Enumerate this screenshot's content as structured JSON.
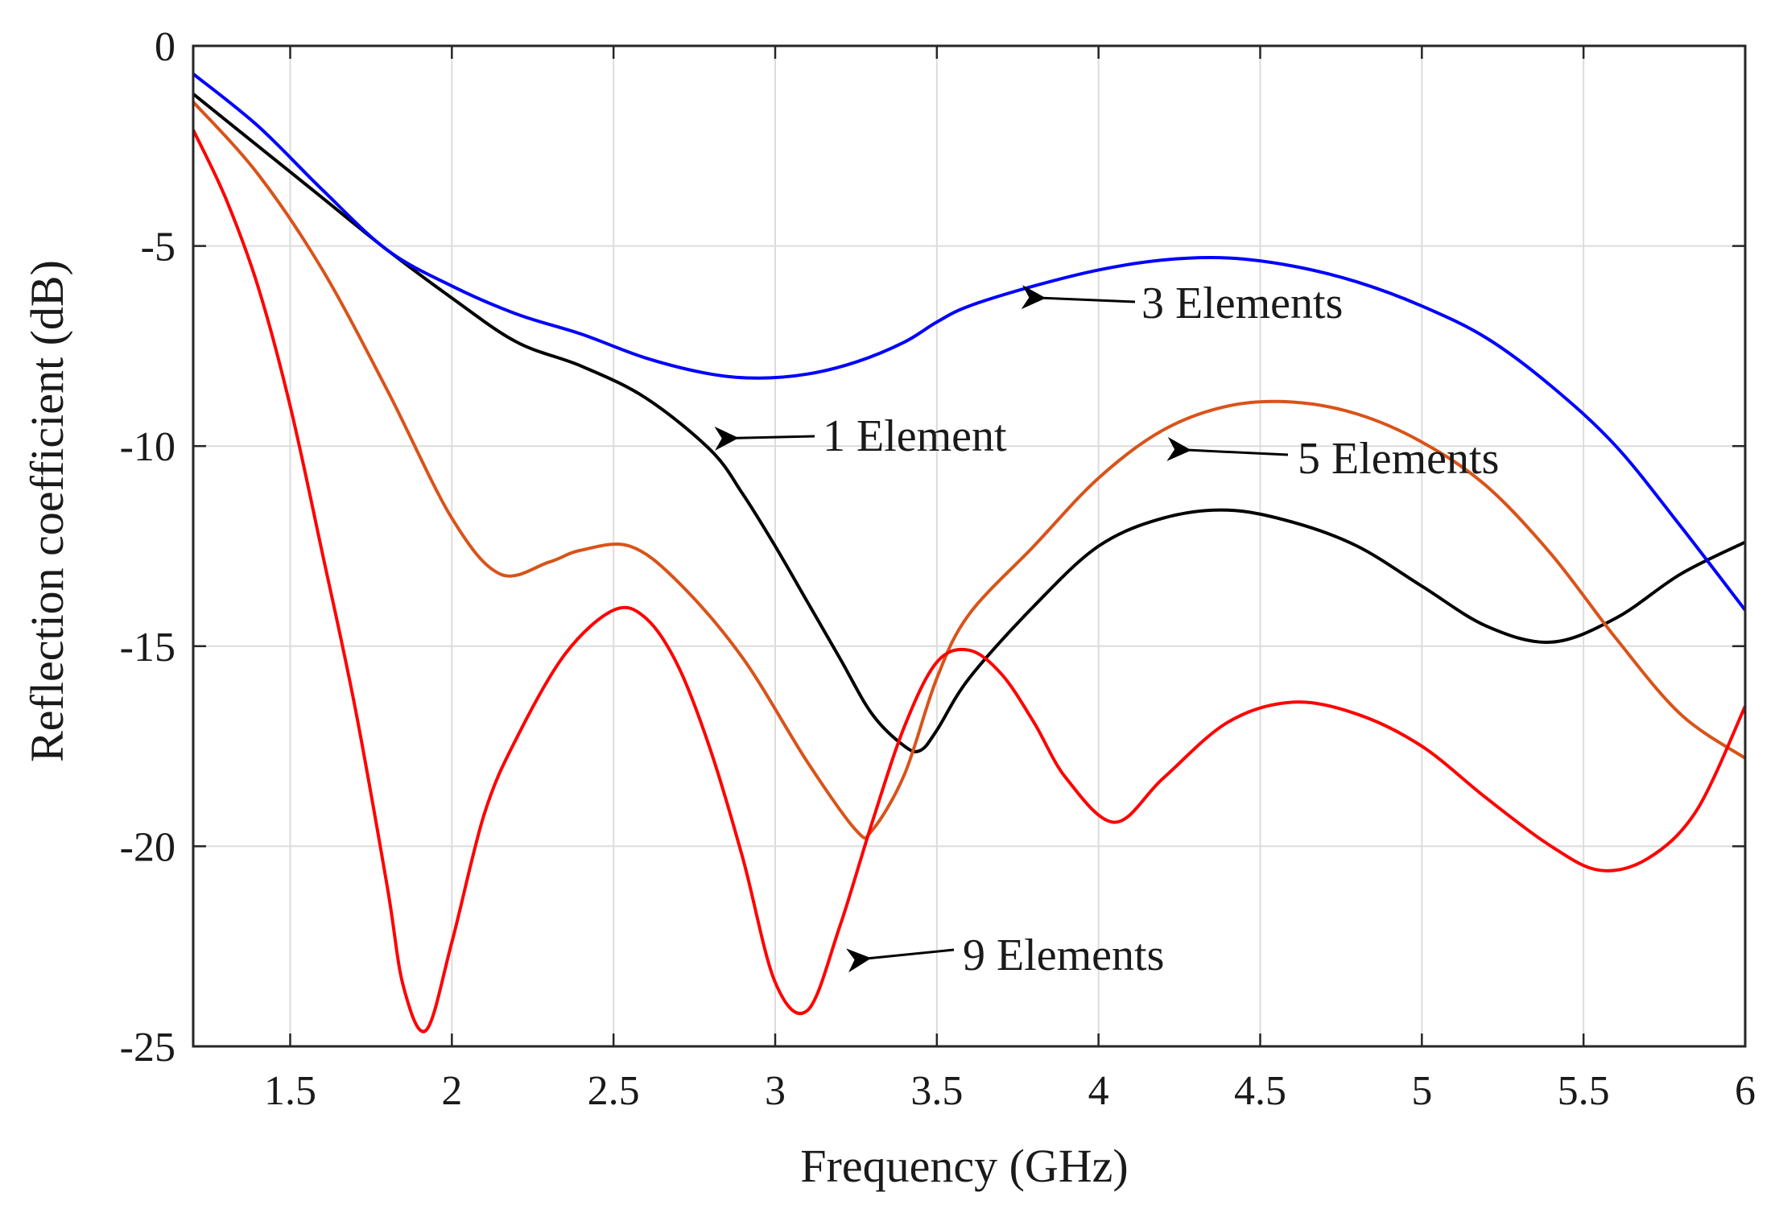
{
  "chart_data": {
    "type": "line",
    "title": "",
    "xlabel": "Frequency (GHz)",
    "ylabel": "Reflection coefficient (dB)",
    "xlim": [
      1.2,
      6
    ],
    "ylim": [
      -25,
      0
    ],
    "xticks": [
      1.5,
      2,
      2.5,
      3,
      3.5,
      4,
      4.5,
      5,
      5.5,
      6
    ],
    "xtick_labels": [
      "1.5",
      "2",
      "2.5",
      "3",
      "3.5",
      "4",
      "4.5",
      "5",
      "5.5",
      "6"
    ],
    "yticks": [
      0,
      -5,
      -10,
      -15,
      -20,
      -25
    ],
    "ytick_labels": [
      "0",
      "-5",
      "-10",
      "-15",
      "-20",
      "-25"
    ],
    "grid": true,
    "series": [
      {
        "name": "1 Element",
        "color": "#000000",
        "x": [
          1.2,
          1.4,
          1.6,
          1.8,
          2.0,
          2.2,
          2.4,
          2.6,
          2.8,
          2.9,
          3.0,
          3.1,
          3.2,
          3.3,
          3.4,
          3.45,
          3.5,
          3.6,
          3.8,
          4.0,
          4.2,
          4.4,
          4.6,
          4.8,
          5.0,
          5.2,
          5.4,
          5.6,
          5.8,
          6.0
        ],
        "y": [
          -1.2,
          -2.5,
          -3.8,
          -5.1,
          -6.3,
          -7.4,
          -8.0,
          -8.8,
          -10.1,
          -11.2,
          -12.5,
          -13.9,
          -15.3,
          -16.7,
          -17.5,
          -17.6,
          -17.1,
          -15.8,
          -14.0,
          -12.5,
          -11.8,
          -11.6,
          -11.9,
          -12.5,
          -13.5,
          -14.5,
          -14.9,
          -14.3,
          -13.2,
          -12.4
        ]
      },
      {
        "name": "3 Elements",
        "color": "#0000ff",
        "x": [
          1.2,
          1.4,
          1.6,
          1.8,
          2.0,
          2.2,
          2.4,
          2.6,
          2.8,
          2.95,
          3.1,
          3.25,
          3.4,
          3.5,
          3.6,
          3.8,
          4.0,
          4.2,
          4.4,
          4.6,
          4.8,
          5.0,
          5.2,
          5.4,
          5.6,
          5.8,
          6.0
        ],
        "y": [
          -0.7,
          -2.0,
          -3.6,
          -5.1,
          -6.0,
          -6.7,
          -7.2,
          -7.8,
          -8.2,
          -8.3,
          -8.2,
          -7.9,
          -7.4,
          -6.9,
          -6.5,
          -6.0,
          -5.6,
          -5.35,
          -5.3,
          -5.5,
          -5.9,
          -6.5,
          -7.3,
          -8.5,
          -10.0,
          -12.0,
          -14.1
        ]
      },
      {
        "name": "5 Elements",
        "color": "#d95319",
        "x": [
          1.2,
          1.4,
          1.6,
          1.8,
          2.0,
          2.15,
          2.3,
          2.4,
          2.55,
          2.7,
          2.9,
          3.1,
          3.25,
          3.3,
          3.4,
          3.5,
          3.6,
          3.8,
          4.0,
          4.2,
          4.4,
          4.6,
          4.8,
          5.0,
          5.2,
          5.4,
          5.6,
          5.8,
          6.0
        ],
        "y": [
          -1.4,
          -3.2,
          -5.6,
          -8.6,
          -11.8,
          -13.2,
          -12.9,
          -12.6,
          -12.5,
          -13.4,
          -15.3,
          -17.9,
          -19.6,
          -19.6,
          -18.2,
          -15.8,
          -14.2,
          -12.5,
          -10.8,
          -9.6,
          -9.0,
          -8.9,
          -9.2,
          -9.9,
          -11.0,
          -12.7,
          -14.8,
          -16.7,
          -17.8
        ]
      },
      {
        "name": "9 Elements",
        "color": "#ff0000",
        "x": [
          1.2,
          1.3,
          1.4,
          1.5,
          1.6,
          1.7,
          1.8,
          1.85,
          1.92,
          2.0,
          2.1,
          2.2,
          2.35,
          2.5,
          2.6,
          2.7,
          2.8,
          2.9,
          3.0,
          3.1,
          3.2,
          3.3,
          3.4,
          3.5,
          3.6,
          3.7,
          3.8,
          3.9,
          4.05,
          4.2,
          4.4,
          4.6,
          4.8,
          5.0,
          5.2,
          5.4,
          5.55,
          5.7,
          5.85,
          6.0
        ],
        "y": [
          -2.1,
          -3.8,
          -6.0,
          -9.0,
          -12.7,
          -16.5,
          -21.0,
          -23.5,
          -24.6,
          -22.4,
          -19.2,
          -17.3,
          -15.2,
          -14.1,
          -14.3,
          -15.5,
          -17.6,
          -20.3,
          -23.4,
          -24.1,
          -22.0,
          -19.4,
          -17.0,
          -15.4,
          -15.1,
          -15.7,
          -16.9,
          -18.3,
          -19.4,
          -18.3,
          -16.9,
          -16.4,
          -16.7,
          -17.5,
          -18.8,
          -20.0,
          -20.6,
          -20.3,
          -19.1,
          -16.5
        ]
      }
    ],
    "annotations": [
      {
        "text": "3 Elements",
        "series": "3 Elements",
        "arrow_to": [
          3.8,
          -6.3
        ]
      },
      {
        "text": "1 Element",
        "series": "1 Element",
        "arrow_to": [
          2.85,
          -9.8
        ]
      },
      {
        "text": "5 Elements",
        "series": "5 Elements",
        "arrow_to": [
          4.25,
          -10.1
        ]
      },
      {
        "text": "9 Elements",
        "series": "9 Elements",
        "arrow_to": [
          3.26,
          -22.8
        ]
      }
    ]
  }
}
